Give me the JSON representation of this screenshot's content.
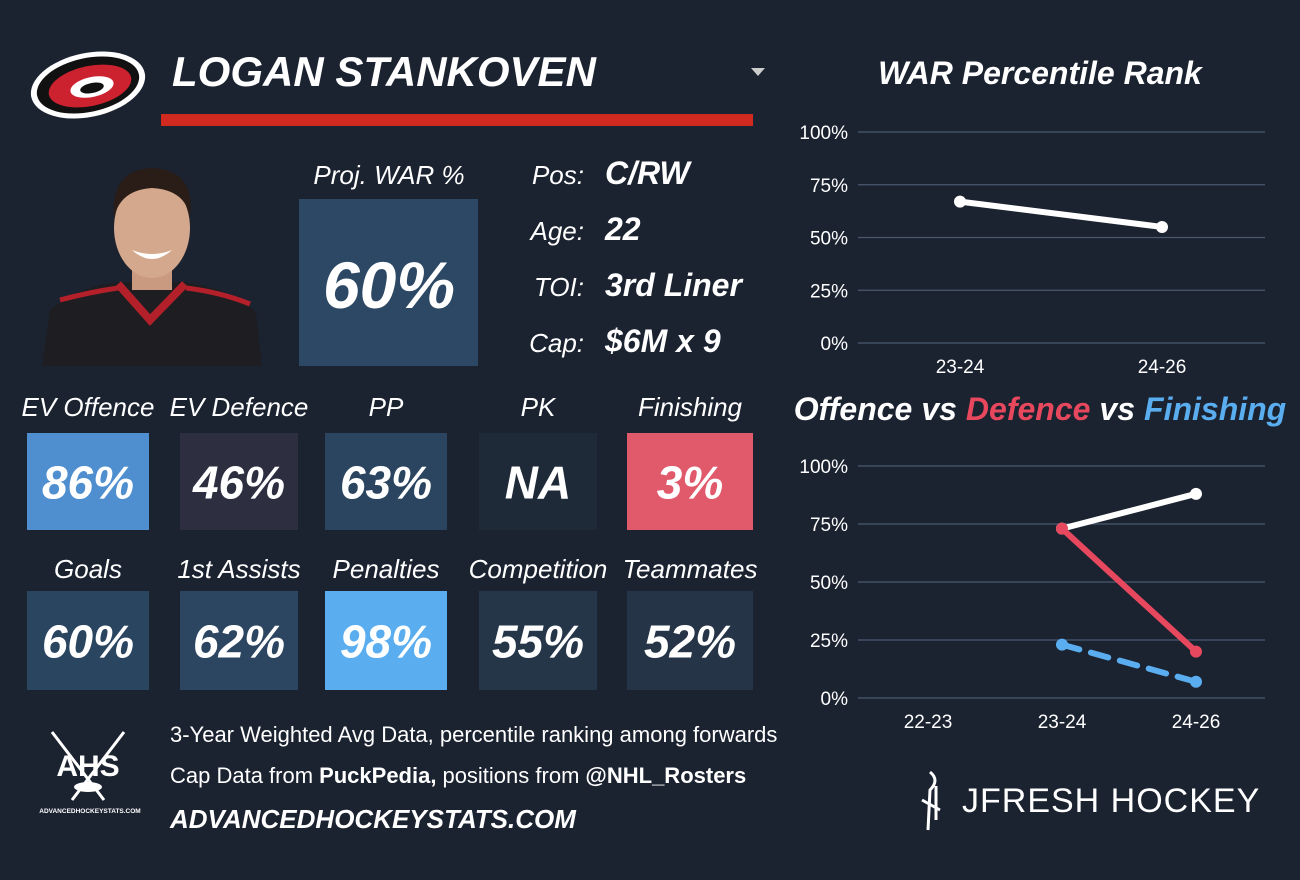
{
  "header": {
    "name": "LOGAN STANKOVEN"
  },
  "projection": {
    "label": "Proj. WAR %",
    "value": "60%",
    "color": "#2c4864"
  },
  "bio": [
    {
      "label": "Pos:",
      "value": "C/RW"
    },
    {
      "label": "Age:",
      "value": "22"
    },
    {
      "label": "TOI:",
      "value": "3rd Liner"
    },
    {
      "label": "Cap:",
      "value": "$6M x 9"
    }
  ],
  "tiles": [
    {
      "label": "EV Offence",
      "value": "86%",
      "color": "#4f8fcf"
    },
    {
      "label": "EV Defence",
      "value": "46%",
      "color": "#2d2e40"
    },
    {
      "label": "PP",
      "value": "63%",
      "color": "#2b4560"
    },
    {
      "label": "PK",
      "value": "NA",
      "color": "#1f2a38"
    },
    {
      "label": "Finishing",
      "value": "3%",
      "color": "#e05a6c"
    },
    {
      "label": "Goals",
      "value": "60%",
      "color": "#2a4560"
    },
    {
      "label": "1st Assists",
      "value": "62%",
      "color": "#2c4662"
    },
    {
      "label": "Penalties",
      "value": "98%",
      "color": "#5aaef0"
    },
    {
      "label": "Competition",
      "value": "55%",
      "color": "#263649"
    },
    {
      "label": "Teammates",
      "value": "52%",
      "color": "#263447"
    }
  ],
  "footer": {
    "note": "3-Year Weighted Avg Data, percentile ranking among forwards",
    "cap_prefix": "Cap Data from",
    "cap_source": "PuckPedia,",
    "pos_prefix": "positions from",
    "pos_source": "@NHL_Rosters",
    "site": "ADVANCEDHOCKEYSTATS.COM",
    "logo": "AHS",
    "logo_caption": "ADVANCEDHOCKEYSTATS.COM",
    "brand": "JFRESH HOCKEY"
  },
  "chart_data": [
    {
      "type": "line",
      "title": "WAR Percentile Rank",
      "categories": [
        "23-24",
        "24-26"
      ],
      "series": [
        {
          "name": "WAR",
          "color": "#ffffff",
          "values": [
            67,
            55
          ]
        }
      ],
      "ylim": [
        0,
        100
      ],
      "yticks": [
        {
          "value": 0,
          "label": "0%"
        },
        {
          "value": 25,
          "label": "25%"
        },
        {
          "value": 50,
          "label": "50%"
        },
        {
          "value": 75,
          "label": "75%"
        },
        {
          "value": 100,
          "label": "100%"
        }
      ],
      "grid": true
    },
    {
      "type": "line",
      "title_separator": "vs",
      "categories": [
        "22-23",
        "23-24",
        "24-26"
      ],
      "series": [
        {
          "name": "Offence",
          "color": "#ffffff",
          "values": [
            null,
            73,
            88
          ]
        },
        {
          "name": "Defence",
          "color": "#e8485e",
          "values": [
            null,
            73,
            20
          ]
        },
        {
          "name": "Finishing",
          "color": "#5aaef0",
          "values": [
            null,
            23,
            7
          ],
          "dashed": true
        }
      ],
      "ylim": [
        0,
        100
      ],
      "yticks": [
        {
          "value": 0,
          "label": "0%"
        },
        {
          "value": 25,
          "label": "25%"
        },
        {
          "value": 50,
          "label": "50%"
        },
        {
          "value": 75,
          "label": "75%"
        },
        {
          "value": 100,
          "label": "100%"
        }
      ],
      "grid": true
    }
  ]
}
